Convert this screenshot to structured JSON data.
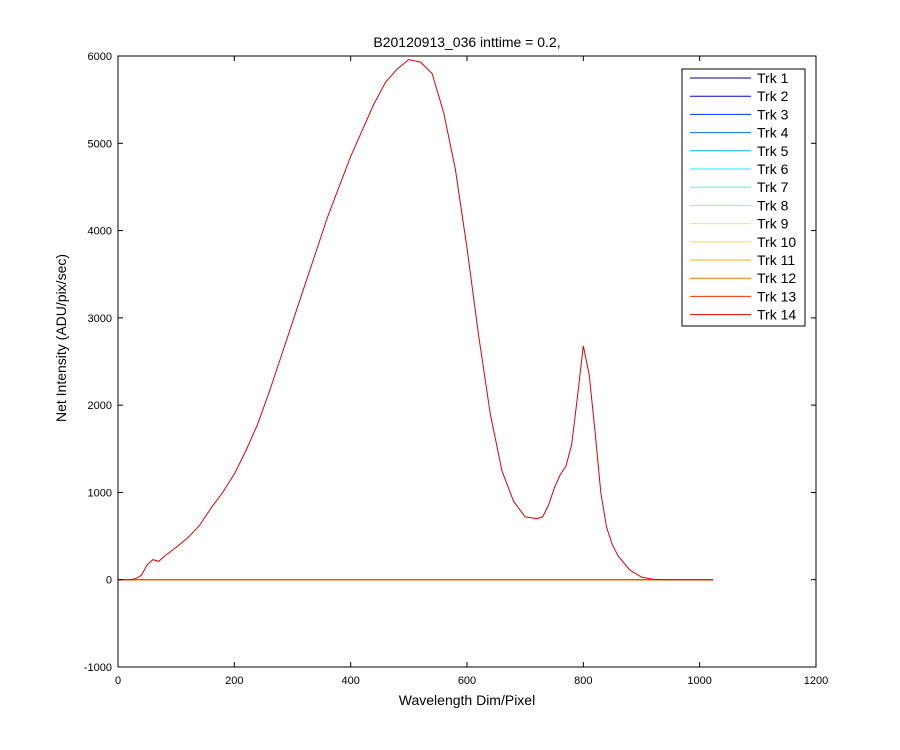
{
  "chart_data": {
    "type": "line",
    "title": "B20120913_036 inttime = 0.2,",
    "xlabel": "Wavelength Dim/Pixel",
    "ylabel": "Net Intensity (ADU/pix/sec)",
    "xlim": [
      0,
      1200
    ],
    "ylim": [
      -1000,
      6000
    ],
    "xticks": [
      "0",
      "200",
      "400",
      "600",
      "800",
      "1000",
      "1200"
    ],
    "yticks": [
      "-1000",
      "0",
      "1000",
      "2000",
      "3000",
      "4000",
      "5000",
      "6000"
    ],
    "grid": false,
    "legend_position": "top-right",
    "series": [
      {
        "name": "Trk 1",
        "color": "#00008F",
        "x": [
          0,
          1023
        ],
        "y": [
          0,
          0
        ]
      },
      {
        "name": "Trk 2",
        "color": "#0000DF",
        "x": [
          0,
          1023
        ],
        "y": [
          0,
          0
        ]
      },
      {
        "name": "Trk 3",
        "color": "#0030FF",
        "x": [
          0,
          1023
        ],
        "y": [
          0,
          0
        ]
      },
      {
        "name": "Trk 4",
        "color": "#0070FF",
        "x": [
          0,
          1023
        ],
        "y": [
          0,
          0
        ]
      },
      {
        "name": "Trk 5",
        "color": "#00B0FF",
        "x": [
          0,
          1023
        ],
        "y": [
          0,
          0
        ]
      },
      {
        "name": "Trk 6",
        "color": "#10F0FF",
        "x": [
          0,
          1023
        ],
        "y": [
          0,
          0
        ]
      },
      {
        "name": "Trk 7",
        "color": "#50FFCF",
        "x": [
          0,
          1023
        ],
        "y": [
          0,
          0
        ]
      },
      {
        "name": "Trk 8",
        "color": "#90FF8F",
        "x": [
          0,
          1023
        ],
        "y": [
          0,
          0
        ]
      },
      {
        "name": "Trk 9",
        "color": "#CFFF50",
        "x": [
          0,
          1023
        ],
        "y": [
          0,
          0
        ]
      },
      {
        "name": "Trk 10",
        "color": "#FFEF00",
        "x": [
          0,
          1023
        ],
        "y": [
          0,
          0
        ]
      },
      {
        "name": "Trk 11",
        "color": "#FFAF00",
        "x": [
          0,
          1023
        ],
        "y": [
          0,
          0
        ]
      },
      {
        "name": "Trk 12",
        "color": "#FF7000",
        "x": [
          0,
          1023
        ],
        "y": [
          0,
          0
        ]
      },
      {
        "name": "Trk 13",
        "color": "#FF3000",
        "x": [
          0,
          1023
        ],
        "y": [
          0,
          0
        ]
      },
      {
        "name": "Trk 14",
        "color": "#DF0000",
        "x": [
          0,
          20,
          30,
          40,
          50,
          60,
          70,
          80,
          100,
          120,
          140,
          160,
          180,
          200,
          220,
          240,
          260,
          280,
          300,
          320,
          340,
          360,
          380,
          400,
          420,
          440,
          460,
          480,
          500,
          520,
          540,
          560,
          580,
          600,
          620,
          640,
          660,
          680,
          700,
          720,
          730,
          740,
          750,
          760,
          770,
          780,
          790,
          800,
          810,
          820,
          830,
          840,
          850,
          860,
          880,
          900,
          920,
          940,
          960,
          980,
          1000,
          1023
        ],
        "y": [
          0,
          0,
          10,
          50,
          170,
          230,
          210,
          270,
          370,
          480,
          620,
          820,
          1000,
          1210,
          1480,
          1780,
          2150,
          2550,
          2950,
          3350,
          3750,
          4150,
          4500,
          4850,
          5150,
          5450,
          5700,
          5850,
          5960,
          5930,
          5800,
          5350,
          4700,
          3800,
          2800,
          1900,
          1250,
          900,
          720,
          700,
          720,
          850,
          1050,
          1200,
          1300,
          1550,
          2100,
          2680,
          2350,
          1700,
          1000,
          600,
          400,
          270,
          110,
          30,
          5,
          0,
          0,
          0,
          0,
          0
        ]
      }
    ]
  }
}
